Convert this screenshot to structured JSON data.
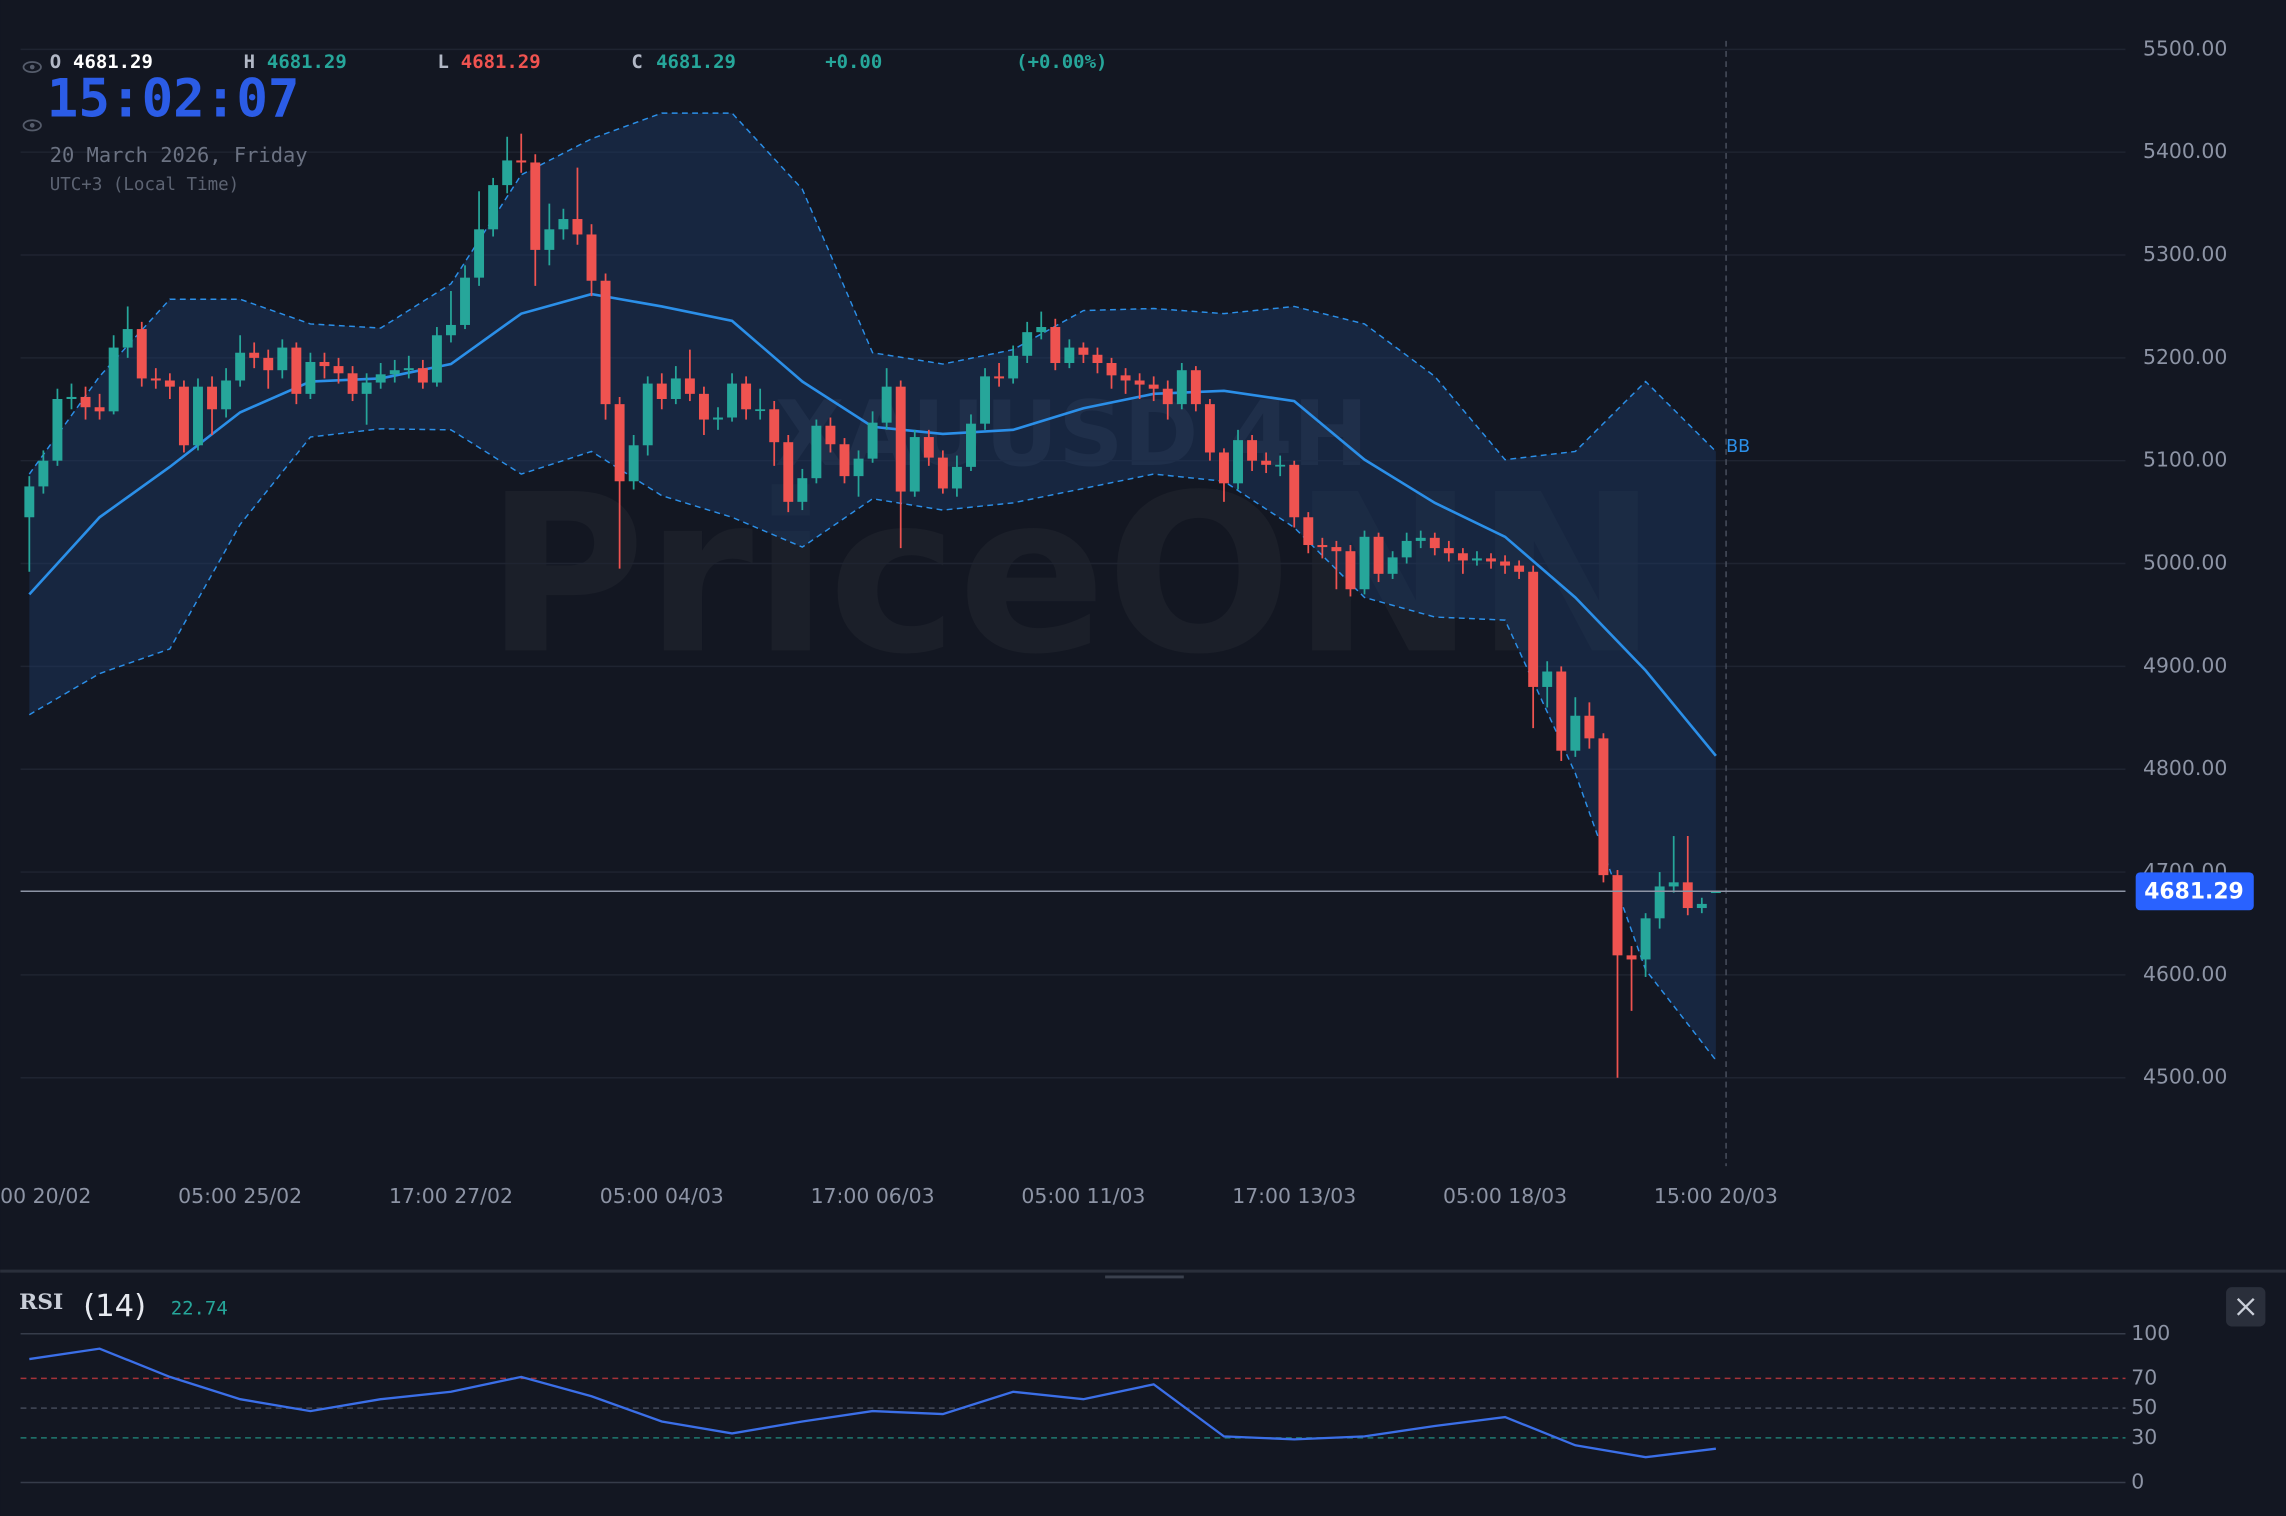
{
  "chart_data": {
    "type": "candlestick",
    "watermark": {
      "symbol": "XAUUSD 4H",
      "brand": "PriceONN"
    },
    "header": {
      "labels": [
        "O",
        "H",
        "L",
        "C"
      ],
      "change": "+0.00",
      "change_pct": "(+0.00%)",
      "clock": "15:02:07",
      "date": "20 March 2026, Friday",
      "timezone": "UTC+3 (Local Time)"
    },
    "colors": {
      "up": "#26a69a",
      "down": "#ef5350"
    },
    "grid": true,
    "categories": [
      "00 20/02",
      null,
      null,
      null,
      null,
      null,
      null,
      null,
      null,
      null,
      null,
      null,
      null,
      null,
      null,
      "05:00 25/02",
      null,
      null,
      null,
      null,
      null,
      null,
      null,
      null,
      null,
      null,
      null,
      null,
      null,
      null,
      "17:00 27/02",
      null,
      null,
      null,
      null,
      null,
      null,
      null,
      null,
      null,
      null,
      null,
      null,
      null,
      null,
      "05:00 04/03",
      null,
      null,
      null,
      null,
      null,
      null,
      null,
      null,
      null,
      null,
      null,
      null,
      null,
      null,
      "17:00 06/03",
      null,
      null,
      null,
      null,
      null,
      null,
      null,
      null,
      null,
      null,
      null,
      null,
      null,
      null,
      "05:00 11/03",
      null,
      null,
      null,
      null,
      null,
      null,
      null,
      null,
      null,
      null,
      null,
      null,
      null,
      null,
      "17:00 13/03",
      null,
      null,
      null,
      null,
      null,
      null,
      null,
      null,
      null,
      null,
      null,
      null,
      null,
      null,
      "05:00 18/03",
      null,
      null,
      null,
      null,
      null,
      null,
      null,
      null,
      null,
      null,
      null,
      null,
      null,
      null,
      "15:00 20/03"
    ],
    "open": [
      5045,
      5075,
      5100,
      5160,
      5162,
      5152,
      5148,
      5210,
      5228,
      5180,
      5178,
      5172,
      5115,
      5172,
      5150,
      5178,
      5205,
      5200,
      5188,
      5210,
      5165,
      5196,
      5192,
      5185,
      5165,
      5176,
      5184,
      5188,
      5190,
      5176,
      5222,
      5232,
      5278,
      5325,
      5368,
      5392,
      5390,
      5305,
      5325,
      5335,
      5320,
      5275,
      5155,
      5080,
      5115,
      5175,
      5160,
      5180,
      5165,
      5140,
      5142,
      5175,
      5150,
      5150,
      5118,
      5060,
      5083,
      5134,
      5116,
      5085,
      5102,
      5137,
      5172,
      5070,
      5123,
      5103,
      5073,
      5094,
      5136,
      5182,
      5180,
      5202,
      5225,
      5230,
      5195,
      5210,
      5203,
      5195,
      5183,
      5178,
      5174,
      5170,
      5155,
      5188,
      5155,
      5108,
      5078,
      5120,
      5100,
      5096,
      5096,
      5045,
      5018,
      5016,
      5012,
      4975,
      5026,
      4990,
      5006,
      5022,
      5025,
      5015,
      5010,
      5003,
      5005,
      5002,
      4998,
      4992,
      4880,
      4895,
      4818,
      4852,
      4830,
      4697,
      4619,
      4615,
      4655,
      4686,
      4690,
      4665,
      4681.29
    ],
    "high": [
      5085,
      5110,
      5170,
      5175,
      5172,
      5165,
      5222,
      5250,
      5235,
      5190,
      5185,
      5178,
      5180,
      5182,
      5190,
      5222,
      5215,
      5208,
      5218,
      5215,
      5205,
      5205,
      5200,
      5192,
      5185,
      5195,
      5198,
      5202,
      5198,
      5230,
      5265,
      5290,
      5362,
      5375,
      5415,
      5418,
      5398,
      5350,
      5345,
      5385,
      5330,
      5282,
      5162,
      5125,
      5182,
      5185,
      5192,
      5208,
      5172,
      5152,
      5185,
      5182,
      5170,
      5158,
      5125,
      5092,
      5140,
      5142,
      5122,
      5110,
      5148,
      5190,
      5178,
      5130,
      5130,
      5110,
      5105,
      5145,
      5190,
      5195,
      5212,
      5235,
      5245,
      5238,
      5218,
      5215,
      5210,
      5200,
      5190,
      5185,
      5182,
      5178,
      5195,
      5192,
      5160,
      5112,
      5130,
      5125,
      5108,
      5105,
      5100,
      5050,
      5025,
      5022,
      5018,
      5032,
      5030,
      5012,
      5030,
      5032,
      5030,
      5022,
      5015,
      5012,
      5010,
      5008,
      5003,
      4998,
      4905,
      4900,
      4870,
      4865,
      4835,
      4702,
      4628,
      4660,
      4700,
      4735,
      4735,
      4675,
      4681.29
    ],
    "low": [
      4992,
      5068,
      5095,
      5150,
      5140,
      5140,
      5145,
      5200,
      5172,
      5170,
      5160,
      5108,
      5110,
      5125,
      5142,
      5172,
      5190,
      5170,
      5180,
      5155,
      5160,
      5180,
      5175,
      5158,
      5135,
      5170,
      5176,
      5180,
      5170,
      5172,
      5215,
      5228,
      5270,
      5318,
      5360,
      5380,
      5270,
      5290,
      5315,
      5310,
      5260,
      5140,
      4995,
      5072,
      5105,
      5150,
      5155,
      5158,
      5125,
      5130,
      5138,
      5140,
      5140,
      5095,
      5050,
      5052,
      5078,
      5108,
      5078,
      5065,
      5098,
      5130,
      5015,
      5065,
      5095,
      5068,
      5065,
      5090,
      5130,
      5172,
      5175,
      5195,
      5218,
      5188,
      5190,
      5195,
      5185,
      5170,
      5165,
      5160,
      5158,
      5140,
      5150,
      5148,
      5100,
      5060,
      5072,
      5090,
      5088,
      5085,
      5035,
      5010,
      5005,
      4975,
      4968,
      4970,
      4982,
      4985,
      5000,
      5015,
      5008,
      5002,
      4990,
      4998,
      4995,
      4990,
      4985,
      4840,
      4860,
      4808,
      4812,
      4820,
      4690,
      4500,
      4565,
      4598,
      4645,
      4680,
      4658,
      4660,
      4681.29
    ],
    "close": [
      5075,
      5100,
      5160,
      5162,
      5152,
      5148,
      5210,
      5228,
      5180,
      5178,
      5172,
      5115,
      5172,
      5150,
      5178,
      5205,
      5200,
      5188,
      5210,
      5165,
      5196,
      5192,
      5185,
      5165,
      5176,
      5184,
      5188,
      5190,
      5176,
      5222,
      5232,
      5278,
      5325,
      5368,
      5392,
      5390,
      5305,
      5325,
      5335,
      5320,
      5275,
      5155,
      5080,
      5115,
      5175,
      5160,
      5180,
      5165,
      5140,
      5142,
      5175,
      5150,
      5150,
      5118,
      5060,
      5083,
      5134,
      5116,
      5085,
      5102,
      5137,
      5172,
      5070,
      5123,
      5103,
      5073,
      5094,
      5136,
      5182,
      5180,
      5202,
      5225,
      5230,
      5195,
      5210,
      5203,
      5195,
      5183,
      5178,
      5174,
      5170,
      5155,
      5188,
      5155,
      5108,
      5078,
      5120,
      5100,
      5096,
      5096,
      5045,
      5018,
      5016,
      5012,
      4975,
      5026,
      4990,
      5006,
      5022,
      5025,
      5015,
      5010,
      5003,
      5005,
      5002,
      4998,
      4992,
      4880,
      4895,
      4818,
      4852,
      4830,
      4697,
      4619,
      4615,
      4655,
      4686,
      4690,
      4665,
      4669,
      4681.29
    ],
    "ylim": [
      4414,
      5548
    ],
    "yticks": [
      {
        "value": 4500,
        "label": "4500.00"
      },
      {
        "value": 4600,
        "label": "4600.00"
      },
      {
        "value": 4700,
        "label": "4700.00"
      },
      {
        "value": 4800,
        "label": "4800.00"
      },
      {
        "value": 4900,
        "label": "4900.00"
      },
      {
        "value": 5000,
        "label": "5000.00"
      },
      {
        "value": 5100,
        "label": "5100.00"
      },
      {
        "value": 5200,
        "label": "5200.00"
      },
      {
        "value": 5300,
        "label": "5300.00"
      },
      {
        "value": 5400,
        "label": "5400.00"
      },
      {
        "value": 5500,
        "label": "5500.00"
      }
    ],
    "bollinger": {
      "label": "BB",
      "color": "#2b8fe8",
      "x": [
        0,
        5,
        10,
        15,
        20,
        25,
        30,
        35,
        40,
        45,
        50,
        55,
        60,
        65,
        70,
        75,
        80,
        85,
        90,
        95,
        100,
        105,
        110,
        115,
        120
      ],
      "upper": [
        5087,
        5182,
        5257,
        5257,
        5233,
        5229,
        5272,
        5378,
        5413,
        5438,
        5438,
        5364,
        5205,
        5194,
        5208,
        5246,
        5248,
        5243,
        5250,
        5233,
        5182,
        5101,
        5109,
        5177,
        5109
      ],
      "middle": [
        4970,
        5045,
        5094,
        5147,
        5177,
        5180,
        5194,
        5243,
        5262,
        5250,
        5236,
        5177,
        5133,
        5126,
        5130,
        5151,
        5165,
        5168,
        5158,
        5101,
        5059,
        5026,
        4967,
        4896,
        4813
      ],
      "lower": [
        4853,
        4893,
        4917,
        5038,
        5123,
        5131,
        5130,
        5087,
        5109,
        5066,
        5045,
        5016,
        5063,
        5052,
        5059,
        5073,
        5087,
        5080,
        5035,
        4967,
        4948,
        4945,
        4796,
        4605,
        4517
      ]
    },
    "rsi": {
      "label": "RSI",
      "period": "(14)",
      "color": "#3b6fe8",
      "x": [
        0,
        5,
        10,
        15,
        20,
        25,
        30,
        35,
        40,
        45,
        50,
        55,
        60,
        65,
        70,
        75,
        80,
        85,
        90,
        95,
        100,
        105,
        110,
        115,
        120
      ],
      "values": [
        83,
        90,
        71,
        56,
        48,
        56,
        61,
        71,
        58,
        41,
        33,
        41,
        48,
        46,
        61,
        56,
        66,
        31,
        29,
        31,
        38,
        44,
        25,
        17,
        22.74
      ],
      "ylim": [
        0,
        100
      ],
      "yticks": [
        0,
        30,
        50,
        70,
        100
      ],
      "level_colors": [
        "#363c4a",
        "#1f7a70",
        "#434958",
        "#a5333a",
        "#363c4a"
      ]
    }
  }
}
